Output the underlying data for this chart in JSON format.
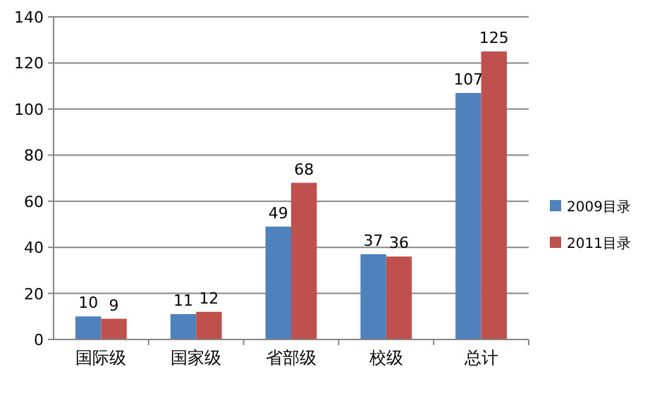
{
  "chart_data": {
    "type": "bar",
    "categories": [
      "国际级",
      "国家级",
      "省部级",
      "校级",
      "总计"
    ],
    "series": [
      {
        "name": "2009目录",
        "color": "#4f81bd",
        "values": [
          10,
          11,
          49,
          37,
          107
        ]
      },
      {
        "name": "2011目录",
        "color": "#c0504d",
        "values": [
          9,
          12,
          68,
          36,
          125
        ]
      }
    ],
    "ylim": [
      0,
      140
    ],
    "yticks": [
      0,
      20,
      40,
      60,
      80,
      100,
      120,
      140
    ],
    "grid": "y",
    "legend": "right",
    "data_labels": true
  }
}
